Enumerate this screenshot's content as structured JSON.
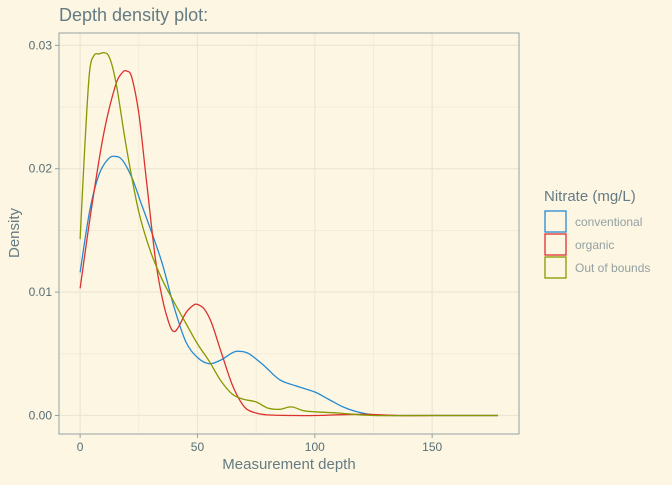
{
  "chart_data": {
    "type": "line",
    "title": "Depth density plot:",
    "xlabel": "Measurement depth",
    "ylabel": "Density",
    "xlim": [
      -9,
      187
    ],
    "ylim": [
      -0.0015,
      0.031
    ],
    "x_ticks": [
      0,
      50,
      100,
      150
    ],
    "x_tick_labels": [
      "0",
      "50",
      "100",
      "150"
    ],
    "y_ticks": [
      0,
      0.01,
      0.02,
      0.03
    ],
    "y_tick_labels": [
      "0.00",
      "0.01",
      "0.02",
      "0.03"
    ],
    "grid": true,
    "legend_title": "Nitrate (mg/L)",
    "legend_position": "right",
    "colors": {
      "background": "#fdf6e3",
      "grid": "#ece6d2",
      "axis": "#93a1a1",
      "text": "#657b83",
      "legend_text": "#93a1a1"
    },
    "series": [
      {
        "name": "conventional",
        "color": "#268bd2",
        "x": [
          0,
          4,
          8,
          12,
          15,
          18,
          22,
          26,
          30,
          35,
          40,
          45,
          50,
          55,
          60,
          65,
          68,
          72,
          78,
          85,
          92,
          100,
          106,
          112,
          118,
          125,
          135,
          150,
          165,
          178
        ],
        "y": [
          0.0116,
          0.0165,
          0.0195,
          0.0208,
          0.021,
          0.0207,
          0.0193,
          0.0172,
          0.0151,
          0.0123,
          0.0088,
          0.006,
          0.0047,
          0.0042,
          0.0045,
          0.0051,
          0.0052,
          0.005,
          0.0041,
          0.0029,
          0.0024,
          0.0019,
          0.0013,
          0.0007,
          0.0003,
          5e-05,
          0,
          0,
          0,
          0
        ]
      },
      {
        "name": "organic",
        "color": "#dc322f",
        "x": [
          0,
          5,
          10,
          15,
          18,
          20,
          22,
          25,
          28,
          32,
          35,
          38,
          40,
          42,
          45,
          48,
          50,
          53,
          56,
          60,
          65,
          70,
          75,
          80,
          90,
          100,
          120,
          135,
          150,
          178
        ],
        "y": [
          0.0103,
          0.017,
          0.0228,
          0.0267,
          0.0278,
          0.0279,
          0.0274,
          0.0245,
          0.0195,
          0.0128,
          0.0095,
          0.0074,
          0.0068,
          0.0072,
          0.0083,
          0.0089,
          0.009,
          0.0086,
          0.0075,
          0.0052,
          0.0024,
          0.0007,
          0.0002,
          5e-05,
          0,
          0,
          0.0001,
          0,
          0,
          0
        ]
      },
      {
        "name": "Out of bounds",
        "color": "#859900",
        "x": [
          0,
          2,
          4,
          6,
          8,
          10,
          12,
          14,
          16,
          20,
          25,
          30,
          35,
          40,
          45,
          50,
          55,
          60,
          65,
          70,
          75,
          80,
          85,
          90,
          95,
          100,
          110,
          125,
          150,
          178
        ],
        "y": [
          0.0143,
          0.0218,
          0.0278,
          0.0292,
          0.0293,
          0.0294,
          0.0292,
          0.0281,
          0.0262,
          0.0214,
          0.0165,
          0.0133,
          0.011,
          0.0092,
          0.0075,
          0.0058,
          0.0044,
          0.0028,
          0.0017,
          0.0013,
          0.0011,
          0.0006,
          0.0005,
          0.0007,
          0.0004,
          0.0003,
          0.0002,
          0,
          0,
          0
        ]
      }
    ]
  }
}
